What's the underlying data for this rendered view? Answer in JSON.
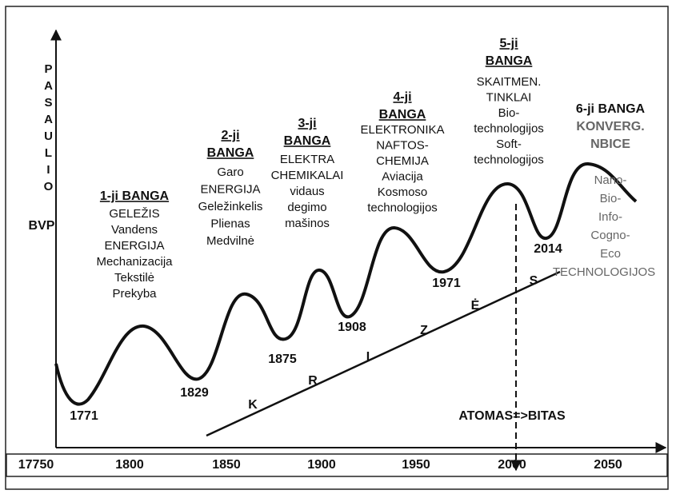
{
  "y_axis": {
    "label": "PASAULIO",
    "label_end": "BVP"
  },
  "x_axis": {
    "ticks": [
      "17750",
      "1800",
      "1850",
      "1900",
      "1950",
      "2000",
      "2050"
    ]
  },
  "waves": [
    {
      "title": [
        "1-ji BANGA"
      ],
      "lines": [
        "GELEŽIS",
        "Vandens",
        "ENERGIJA",
        "Mechanizacija",
        "Tekstilė",
        "Prekyba"
      ]
    },
    {
      "title": [
        "2-ji",
        "BANGA"
      ],
      "lines": [
        "Garo",
        "ENERGIJA",
        "Geležinkelis",
        "Plienas",
        "Medvilnė"
      ]
    },
    {
      "title": [
        "3-ji",
        "BANGA"
      ],
      "lines": [
        "ELEKTRA",
        "CHEMIKALAI",
        "vidaus",
        "degimo",
        "mašinos"
      ]
    },
    {
      "title": [
        "4-ji",
        "BANGA"
      ],
      "lines": [
        "ELEKTRONIKA",
        "NAFTOS-",
        "CHEMIJA",
        "Aviacija",
        "Kosmoso",
        "technologijos"
      ]
    },
    {
      "title": [
        "5-ji",
        "BANGA"
      ],
      "lines": [
        "SKAITMEN.",
        "TINKLAI",
        "Bio-",
        "technologijos",
        "Soft-",
        "technologijos"
      ]
    },
    {
      "title": [
        "6-ji BANGA",
        "KONVERG.",
        "NBICE"
      ],
      "lines": [
        "Nano-",
        "Bio-",
        "Info-",
        "Cogno-",
        "Eco",
        "TECHNOLOGIJOS"
      ]
    }
  ],
  "troughs": [
    "1771",
    "1829",
    "1875",
    "1908",
    "1971",
    "2014"
  ],
  "crisis_letters": [
    "K",
    "R",
    "I",
    "Z",
    "Ė",
    "S"
  ],
  "transition": "ATOMAS=>BITAS"
}
